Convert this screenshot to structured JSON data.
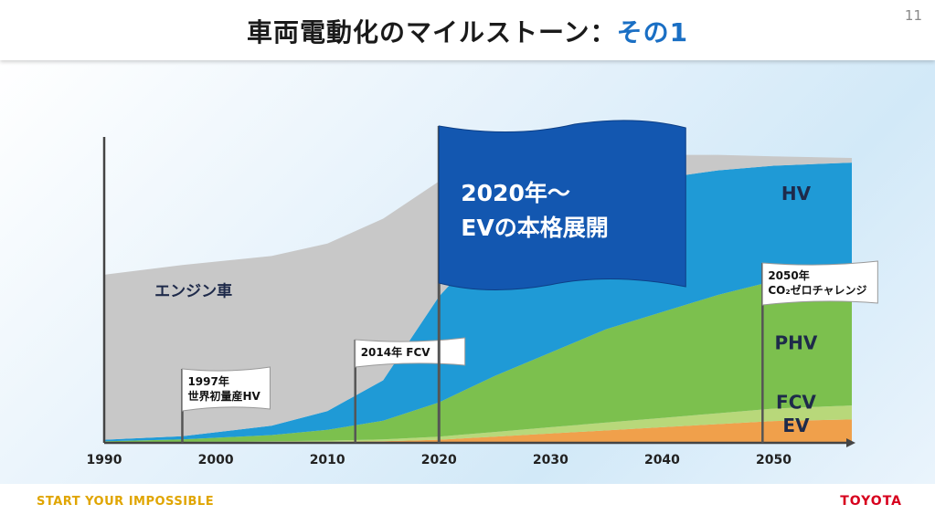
{
  "header": {
    "title_main": "車両電動化のマイルストーン：",
    "title_accent": "その1",
    "page_number": "11"
  },
  "footer": {
    "slogan": "START YOUR IMPOSSIBLE",
    "logo_text": "TOYOTA"
  },
  "chart_data": {
    "type": "area",
    "stacked": true,
    "x_ticks": [
      "1990",
      "2000",
      "2010",
      "2020",
      "2030",
      "2040",
      "2050"
    ],
    "xlim": [
      1990,
      2057
    ],
    "x": [
      1990,
      1997,
      2005,
      2010,
      2015,
      2020,
      2025,
      2030,
      2035,
      2040,
      2045,
      2050,
      2057
    ],
    "series": [
      {
        "name": "EV",
        "color": "#f0a04b",
        "values": [
          0.1,
          0.1,
          0.2,
          0.3,
          0.5,
          1.0,
          2.0,
          3.0,
          4.0,
          5.0,
          6.0,
          7.0,
          7.5
        ]
      },
      {
        "name": "FCV",
        "color": "#b8d87a",
        "values": [
          0.1,
          0.2,
          0.3,
          0.4,
          0.6,
          1.0,
          1.5,
          2.0,
          2.5,
          3.0,
          3.5,
          4.0,
          4.5
        ]
      },
      {
        "name": "PHV",
        "color": "#7cc04e",
        "values": [
          0.3,
          0.8,
          2.0,
          3.5,
          6.0,
          11.0,
          18.0,
          24.0,
          30.0,
          34.0,
          38.0,
          41.0,
          43.0
        ]
      },
      {
        "name": "HV",
        "color": "#1f9ad6",
        "values": [
          0.5,
          1.0,
          3.0,
          6.0,
          13.0,
          34.0,
          45.0,
          48.0,
          45.0,
          43.0,
          40.0,
          37.0,
          35.0
        ]
      },
      {
        "name": "エンジン車",
        "color": "#c8c8c8",
        "values": [
          53,
          55,
          54.5,
          53.8,
          51.9,
          37.0,
          23.5,
          16.0,
          11.0,
          7.5,
          5.0,
          3.0,
          1.5
        ]
      }
    ],
    "area_labels": [
      {
        "series": "エンジン車",
        "text": "エンジン車",
        "x": 1998,
        "y": 47
      },
      {
        "series": "HV",
        "text": "HV",
        "x": 2052,
        "y": 78
      },
      {
        "series": "PHV",
        "text": "PHV",
        "x": 2052,
        "y": 30
      },
      {
        "series": "FCV",
        "text": "FCV",
        "x": 2052,
        "y": 11
      },
      {
        "series": "EV",
        "text": "EV",
        "x": 2052,
        "y": 3.5
      }
    ],
    "milestones": [
      {
        "x": 1997,
        "lines": [
          "1997年",
          "世界初量産HV"
        ],
        "style": "white"
      },
      {
        "x": 2012.5,
        "lines": [
          "2014年 FCV"
        ],
        "style": "white"
      },
      {
        "x": 2020,
        "lines": [
          "2020年～",
          "EVの本格展開"
        ],
        "style": "blue"
      },
      {
        "x": 2049,
        "lines": [
          "2050年",
          "CO₂ゼロチャレンジ"
        ],
        "style": "white"
      }
    ]
  }
}
